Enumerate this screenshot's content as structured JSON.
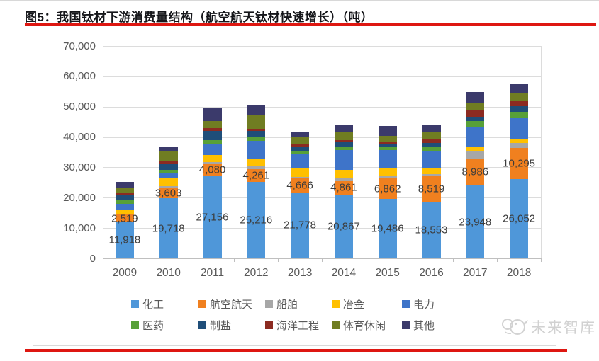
{
  "header": {
    "title": "图5：我国钛材下游消费量结构（航空航天钛材快速增长）（吨）"
  },
  "accent": {
    "red_rule_color": "#de1711"
  },
  "watermark": {
    "text": "未来智库",
    "icon": "bird-logo"
  },
  "chart_data": {
    "type": "bar",
    "stacked": true,
    "title": "我国钛材下游消费量结构（吨）",
    "unit": "吨",
    "grid": "horizontal-only",
    "legend_position": "bottom",
    "ylim": [
      0,
      70000
    ],
    "ytick_step": 10000,
    "ytick_labels": [
      "0",
      "10,000",
      "20,000",
      "30,000",
      "40,000",
      "50,000",
      "60,000",
      "70,000"
    ],
    "categories": [
      "2009",
      "2010",
      "2011",
      "2012",
      "2013",
      "2014",
      "2015",
      "2016",
      "2017",
      "2018"
    ],
    "series": [
      {
        "name": "化工",
        "color": "#4f97d9",
        "labeled": true,
        "values": [
          11918,
          19718,
          27156,
          25216,
          21778,
          20867,
          19486,
          18553,
          23948,
          26052
        ]
      },
      {
        "name": "航空航天",
        "color": "#f0801f",
        "labeled": true,
        "values": [
          2519,
          3603,
          4080,
          4261,
          4666,
          4861,
          6862,
          8519,
          8986,
          10295
        ]
      },
      {
        "name": "船舶",
        "color": "#a7a7a7",
        "labeled": false,
        "values": [
          350,
          400,
          600,
          780,
          470,
          780,
          1000,
          780,
          2300,
          1780
        ]
      },
      {
        "name": "冶金",
        "color": "#ffc000",
        "labeled": false,
        "values": [
          1400,
          2720,
          2330,
          2330,
          2640,
          2640,
          2480,
          2100,
          1550,
          1320
        ]
      },
      {
        "name": "电力",
        "color": "#3e74c9",
        "labeled": false,
        "values": [
          1700,
          1550,
          3650,
          6200,
          5050,
          6500,
          5830,
          5200,
          6600,
          7000
        ]
      },
      {
        "name": "医药",
        "color": "#57a038",
        "labeled": false,
        "values": [
          1400,
          1165,
          1165,
          1010,
          850,
          1010,
          1010,
          1780,
          1780,
          1940
        ]
      },
      {
        "name": "制盐",
        "color": "#1f4e79",
        "labeled": false,
        "values": [
          1500,
          1940,
          2950,
          2100,
          1480,
          1550,
          1090,
          1165,
          1550,
          1700
        ]
      },
      {
        "name": "海洋工程",
        "color": "#8c2b21",
        "labeled": false,
        "values": [
          900,
          930,
          1090,
          780,
          850,
          780,
          780,
          1165,
          2100,
          2020
        ]
      },
      {
        "name": "体育休闲",
        "color": "#707d22",
        "labeled": false,
        "values": [
          1700,
          3100,
          2170,
          4600,
          2100,
          2720,
          1780,
          2330,
          2560,
          2330
        ]
      },
      {
        "name": "其他",
        "color": "#3b3a6b",
        "labeled": false,
        "values": [
          1800,
          1550,
          4270,
          3100,
          1550,
          2500,
          3200,
          2500,
          3500,
          3000
        ]
      }
    ]
  }
}
